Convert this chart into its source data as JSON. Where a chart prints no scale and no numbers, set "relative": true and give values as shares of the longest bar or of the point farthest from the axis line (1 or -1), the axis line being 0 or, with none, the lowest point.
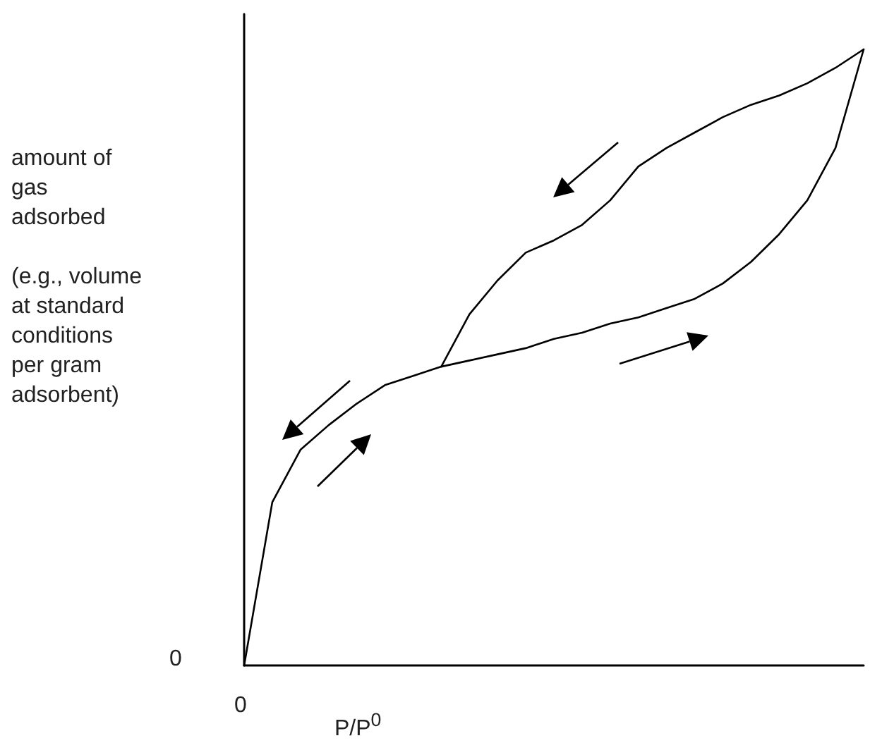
{
  "chart_data": {
    "type": "line",
    "relative": true,
    "xlabel": "P/P$^{0}$",
    "ylabel": "amount of\ngas\nadsorbed\n\n(e.g., volume\nat standard\nconditions\nper gram\nadsorbent)",
    "annotations": [
      "0",
      "0"
    ],
    "categories": [
      null,
      null,
      null,
      null,
      null,
      null,
      null,
      null,
      null,
      null,
      null,
      null,
      null,
      null,
      null,
      null,
      null,
      null,
      null,
      null,
      null,
      null,
      null
    ],
    "series": [
      {
        "color": "#000000",
        "values": [
          0,
          0.265,
          0.35,
          0.39,
          0.425,
          0.455,
          0.47,
          0.485,
          0.495,
          0.505,
          0.515,
          0.53,
          0.54,
          0.555,
          0.565,
          0.58,
          0.595,
          0.62,
          0.655,
          0.7,
          0.755,
          0.84,
          1
        ]
      },
      {
        "color": "#000000",
        "values": [
          null,
          null,
          null,
          null,
          null,
          null,
          null,
          0.485,
          0.57,
          0.625,
          0.67,
          0.69,
          0.715,
          0.755,
          0.81,
          0.84,
          0.865,
          0.89,
          0.91,
          0.925,
          0.945,
          0.97,
          1
        ]
      }
    ],
    "marker": "none",
    "grid": false
  }
}
